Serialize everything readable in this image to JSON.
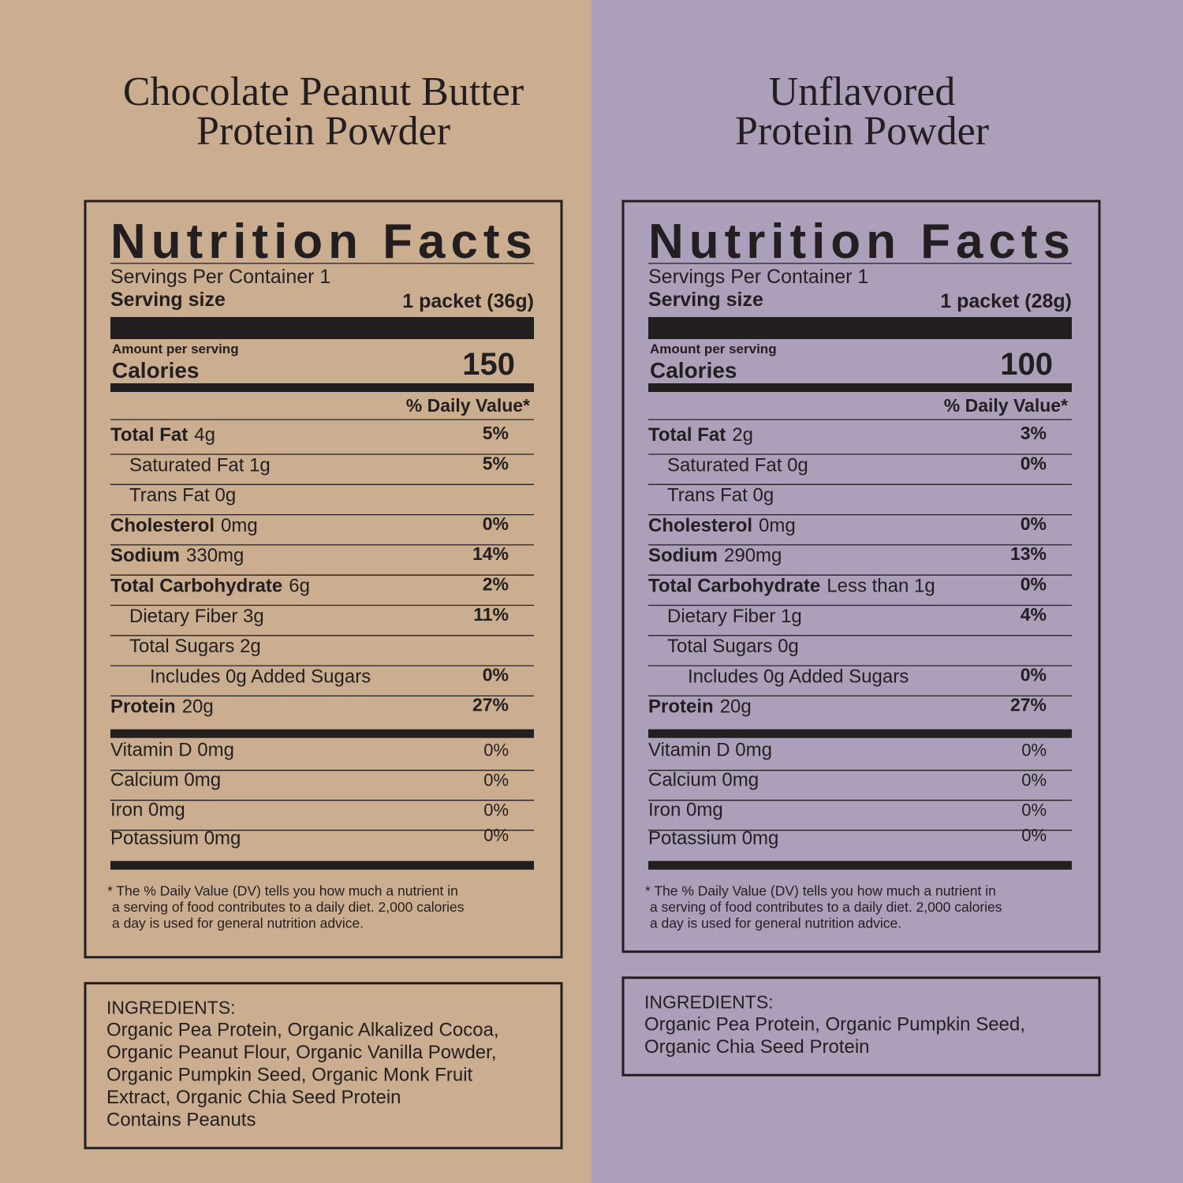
{
  "panels": [
    {
      "title": [
        "Chocolate Peanut Butter",
        "Protein Powder"
      ],
      "label": {
        "heading": "Nutrition Facts",
        "servings": "Servings Per Container 1",
        "serving_size_label": "Serving size",
        "serving_size": "1 packet (36g)",
        "amount_per_serving": "Amount per serving",
        "calories_label": "Calories",
        "calories": "150",
        "dv_header": "% Daily Value*",
        "nutrients": [
          {
            "name": "Total Fat",
            "amount": "4g",
            "dv": "5%",
            "bold": true,
            "indent": 0
          },
          {
            "name": "Saturated Fat 1g",
            "dv": "5%",
            "bold": false,
            "indent": 1
          },
          {
            "name": "Trans Fat 0g",
            "bold": false,
            "indent": 1
          },
          {
            "name": "Cholesterol",
            "amount": "0mg",
            "dv": "0%",
            "bold": true,
            "indent": 0
          },
          {
            "name": "Sodium",
            "amount": "330mg",
            "dv": "14%",
            "bold": true,
            "indent": 0
          },
          {
            "name": "Total Carbohydrate",
            "amount": "6g",
            "dv": "2%",
            "bold": true,
            "indent": 0
          },
          {
            "name": "Dietary Fiber 3g",
            "dv": "11%",
            "bold": false,
            "indent": 1
          },
          {
            "name": "Total Sugars 2g",
            "bold": false,
            "indent": 1
          },
          {
            "name": "Includes 0g Added Sugars",
            "dv": "0%",
            "bold": false,
            "indent": 2
          },
          {
            "name": "Protein",
            "amount": "20g",
            "dv": "27%",
            "bold": true,
            "indent": 0
          }
        ],
        "vitamins": [
          {
            "name": "Vitamin D 0mg",
            "dv": "0%"
          },
          {
            "name": "Calcium 0mg",
            "dv": "0%"
          },
          {
            "name": "Iron 0mg",
            "dv": "0%"
          },
          {
            "name": "Potassium 0mg",
            "dv": "0%"
          }
        ],
        "footnote": [
          "* The % Daily Value (DV) tells you how much a nutrient in",
          "a serving of food contributes to a daily diet. 2,000 calories",
          "a day is used for general nutrition advice."
        ]
      },
      "ingredients": {
        "heading": "INGREDIENTS:",
        "lines": [
          "Organic Pea Protein, Organic Alkalized Cocoa,",
          "Organic Peanut Flour, Organic Vanilla Powder,",
          "Organic Pumpkin Seed, Organic Monk Fruit",
          "Extract, Organic Chia Seed Protein",
          "Contains Peanuts"
        ]
      }
    },
    {
      "title": [
        "Unflavored",
        "Protein Powder"
      ],
      "label": {
        "heading": "Nutrition Facts",
        "servings": "Servings Per Container 1",
        "serving_size_label": "Serving size",
        "serving_size": "1 packet (28g)",
        "amount_per_serving": "Amount per serving",
        "calories_label": "Calories",
        "calories": "100",
        "dv_header": "% Daily Value*",
        "nutrients": [
          {
            "name": "Total Fat",
            "amount": "2g",
            "dv": "3%",
            "bold": true,
            "indent": 0
          },
          {
            "name": "Saturated Fat 0g",
            "dv": "0%",
            "bold": false,
            "indent": 1
          },
          {
            "name": "Trans Fat 0g",
            "bold": false,
            "indent": 1
          },
          {
            "name": "Cholesterol",
            "amount": "0mg",
            "dv": "0%",
            "bold": true,
            "indent": 0
          },
          {
            "name": "Sodium",
            "amount": "290mg",
            "dv": "13%",
            "bold": true,
            "indent": 0
          },
          {
            "name": "Total Carbohydrate",
            "amount": "Less than 1g",
            "dv": "0%",
            "bold": true,
            "indent": 0
          },
          {
            "name": "Dietary Fiber 1g",
            "dv": "4%",
            "bold": false,
            "indent": 1
          },
          {
            "name": "Total Sugars 0g",
            "bold": false,
            "indent": 1
          },
          {
            "name": "Includes 0g Added Sugars",
            "dv": "0%",
            "bold": false,
            "indent": 2
          },
          {
            "name": "Protein",
            "amount": "20g",
            "dv": "27%",
            "bold": true,
            "indent": 0
          }
        ],
        "vitamins": [
          {
            "name": "Vitamin D 0mg",
            "dv": "0%"
          },
          {
            "name": "Calcium 0mg",
            "dv": "0%"
          },
          {
            "name": "Iron 0mg",
            "dv": "0%"
          },
          {
            "name": "Potassium 0mg",
            "dv": "0%"
          }
        ],
        "footnote": [
          "* The % Daily Value (DV) tells you how much a nutrient in",
          "a serving of food contributes to a daily diet. 2,000 calories",
          "a day is used for general nutrition advice."
        ]
      },
      "ingredients": {
        "heading": "INGREDIENTS:",
        "lines": [
          "Organic Pea Protein, Organic Pumpkin Seed,",
          "Organic Chia Seed Protein"
        ]
      }
    }
  ]
}
